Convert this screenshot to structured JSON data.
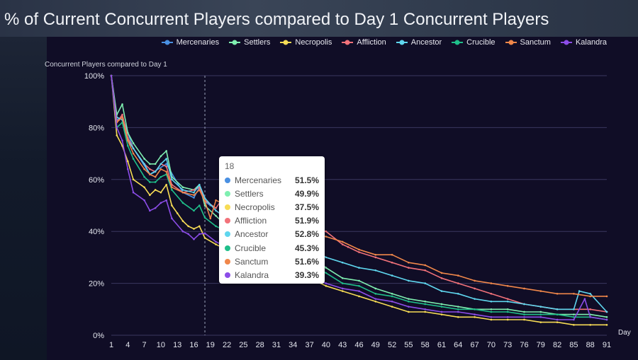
{
  "title": "% of Current Concurrent Players compared to Day 1 Concurrent Players",
  "colors": {
    "Mercenaries": "#4a90e2",
    "Settlers": "#7fefb0",
    "Necropolis": "#f7dc55",
    "Affliction": "#f2727a",
    "Ancestor": "#5fd6ee",
    "Crucible": "#1fbf8a",
    "Sanctum": "#f0874a",
    "Kalandra": "#8c4de8",
    "grid": "#3a3860",
    "axis_text": "#e4e6ee",
    "crosshair": "#9aa0b8"
  },
  "tooltip": {
    "day": "18",
    "rows": [
      {
        "name": "Mercenaries",
        "value": "51.5%"
      },
      {
        "name": "Settlers",
        "value": "49.9%"
      },
      {
        "name": "Necropolis",
        "value": "37.5%"
      },
      {
        "name": "Affliction",
        "value": "51.9%"
      },
      {
        "name": "Ancestor",
        "value": "52.8%"
      },
      {
        "name": "Crucible",
        "value": "45.3%"
      },
      {
        "name": "Sanctum",
        "value": "51.6%"
      },
      {
        "name": "Kalandra",
        "value": "39.3%"
      }
    ]
  },
  "chart_data": {
    "type": "line",
    "title": "% of Current Concurrent Players compared to Day 1 Concurrent Players",
    "ylabel": "Concurrent Players compared to Day 1",
    "xlabel": "Day",
    "xlim": [
      1,
      91
    ],
    "ylim": [
      0,
      100
    ],
    "x_ticks": [
      1,
      4,
      7,
      10,
      13,
      16,
      19,
      22,
      25,
      28,
      31,
      34,
      37,
      40,
      43,
      46,
      49,
      52,
      55,
      58,
      61,
      64,
      67,
      70,
      73,
      76,
      79,
      82,
      85,
      88,
      91
    ],
    "y_ticks": [
      0,
      20,
      40,
      60,
      80,
      100
    ],
    "y_tick_labels": [
      "0%",
      "20%",
      "40%",
      "60%",
      "80%",
      "100%"
    ],
    "legend_position": "top-right",
    "grid": true,
    "highlight_x": 18,
    "series": [
      {
        "name": "Mercenaries",
        "points": [
          [
            1,
            100
          ],
          [
            2,
            83
          ],
          [
            3,
            84
          ],
          [
            5,
            72
          ],
          [
            8,
            62
          ],
          [
            11,
            66
          ],
          [
            14,
            55
          ],
          [
            16,
            53
          ],
          [
            17,
            57
          ],
          [
            18,
            51.5
          ],
          [
            19,
            50
          ]
        ]
      },
      {
        "name": "Settlers",
        "points": [
          [
            1,
            100
          ],
          [
            2,
            85
          ],
          [
            3,
            89
          ],
          [
            4,
            78
          ],
          [
            5,
            74
          ],
          [
            7,
            68
          ],
          [
            8,
            66
          ],
          [
            9,
            66
          ],
          [
            10,
            69
          ],
          [
            11,
            71
          ],
          [
            12,
            61
          ],
          [
            14,
            57
          ],
          [
            16,
            56
          ],
          [
            17,
            58
          ],
          [
            18,
            49.9
          ],
          [
            20,
            46
          ],
          [
            22,
            42
          ],
          [
            25,
            39
          ],
          [
            28,
            37
          ],
          [
            31,
            35
          ],
          [
            34,
            34
          ],
          [
            37,
            31
          ],
          [
            40,
            26
          ],
          [
            43,
            22
          ],
          [
            46,
            21
          ],
          [
            49,
            18
          ],
          [
            52,
            16
          ],
          [
            55,
            14
          ],
          [
            58,
            13
          ],
          [
            61,
            12
          ],
          [
            64,
            11
          ],
          [
            67,
            10
          ],
          [
            70,
            10
          ],
          [
            73,
            10
          ],
          [
            76,
            9
          ],
          [
            79,
            9
          ],
          [
            82,
            8
          ],
          [
            85,
            8
          ],
          [
            88,
            8
          ],
          [
            91,
            7
          ]
        ]
      },
      {
        "name": "Necropolis",
        "points": [
          [
            1,
            100
          ],
          [
            2,
            77
          ],
          [
            3,
            73
          ],
          [
            4,
            67
          ],
          [
            5,
            60
          ],
          [
            7,
            57
          ],
          [
            8,
            54
          ],
          [
            9,
            56
          ],
          [
            10,
            55
          ],
          [
            11,
            58
          ],
          [
            12,
            50
          ],
          [
            13,
            47
          ],
          [
            14,
            44
          ],
          [
            15,
            42
          ],
          [
            16,
            41
          ],
          [
            17,
            42
          ],
          [
            18,
            37.5
          ],
          [
            20,
            35
          ],
          [
            22,
            33
          ],
          [
            25,
            30
          ],
          [
            28,
            29
          ],
          [
            31,
            27
          ],
          [
            34,
            25
          ],
          [
            37,
            22
          ],
          [
            40,
            19
          ],
          [
            43,
            17
          ],
          [
            46,
            15
          ],
          [
            49,
            13
          ],
          [
            52,
            11
          ],
          [
            55,
            9
          ],
          [
            58,
            9
          ],
          [
            61,
            8
          ],
          [
            64,
            7
          ],
          [
            67,
            7
          ],
          [
            70,
            6
          ],
          [
            73,
            6
          ],
          [
            76,
            6
          ],
          [
            79,
            5
          ],
          [
            82,
            5
          ],
          [
            85,
            4
          ],
          [
            88,
            4
          ],
          [
            91,
            4
          ]
        ]
      },
      {
        "name": "Affliction",
        "points": [
          [
            1,
            100
          ],
          [
            2,
            82
          ],
          [
            3,
            85
          ],
          [
            4,
            76
          ],
          [
            5,
            72
          ],
          [
            7,
            66
          ],
          [
            8,
            64
          ],
          [
            9,
            63
          ],
          [
            10,
            66
          ],
          [
            11,
            65
          ],
          [
            12,
            58
          ],
          [
            14,
            55
          ],
          [
            16,
            56
          ],
          [
            17,
            57
          ],
          [
            18,
            51.9
          ],
          [
            20,
            49
          ],
          [
            22,
            55
          ],
          [
            25,
            50
          ],
          [
            28,
            47
          ],
          [
            31,
            45
          ],
          [
            34,
            44
          ],
          [
            37,
            41
          ],
          [
            40,
            40
          ],
          [
            43,
            35
          ],
          [
            44,
            34
          ],
          [
            46,
            32
          ],
          [
            49,
            30
          ],
          [
            52,
            28
          ],
          [
            55,
            26
          ],
          [
            58,
            25
          ],
          [
            61,
            22
          ],
          [
            64,
            20
          ],
          [
            67,
            18
          ],
          [
            70,
            16
          ],
          [
            73,
            14
          ],
          [
            76,
            12
          ],
          [
            79,
            11
          ],
          [
            82,
            10
          ],
          [
            85,
            10
          ],
          [
            88,
            10
          ],
          [
            91,
            9
          ]
        ]
      },
      {
        "name": "Ancestor",
        "points": [
          [
            1,
            100
          ],
          [
            2,
            84
          ],
          [
            3,
            83
          ],
          [
            4,
            75
          ],
          [
            5,
            72
          ],
          [
            7,
            66
          ],
          [
            8,
            62
          ],
          [
            9,
            63
          ],
          [
            10,
            66
          ],
          [
            11,
            68
          ],
          [
            12,
            60
          ],
          [
            14,
            56
          ],
          [
            16,
            55
          ],
          [
            17,
            58
          ],
          [
            18,
            52.8
          ],
          [
            20,
            48
          ],
          [
            22,
            45
          ],
          [
            25,
            42
          ],
          [
            28,
            40
          ],
          [
            31,
            38
          ],
          [
            34,
            36
          ],
          [
            37,
            34
          ],
          [
            40,
            30
          ],
          [
            43,
            28
          ],
          [
            46,
            26
          ],
          [
            49,
            25
          ],
          [
            52,
            23
          ],
          [
            55,
            21
          ],
          [
            58,
            20
          ],
          [
            61,
            17
          ],
          [
            64,
            16
          ],
          [
            67,
            14
          ],
          [
            70,
            13
          ],
          [
            73,
            13
          ],
          [
            76,
            12
          ],
          [
            79,
            11
          ],
          [
            82,
            10
          ],
          [
            85,
            10
          ],
          [
            86,
            17
          ],
          [
            88,
            16
          ],
          [
            91,
            9
          ]
        ]
      },
      {
        "name": "Crucible",
        "points": [
          [
            1,
            100
          ],
          [
            2,
            80
          ],
          [
            3,
            82
          ],
          [
            4,
            73
          ],
          [
            5,
            68
          ],
          [
            7,
            61
          ],
          [
            8,
            59
          ],
          [
            9,
            59
          ],
          [
            10,
            61
          ],
          [
            11,
            62
          ],
          [
            12,
            56
          ],
          [
            14,
            51
          ],
          [
            16,
            48
          ],
          [
            17,
            50
          ],
          [
            18,
            45.3
          ],
          [
            20,
            42
          ],
          [
            22,
            40
          ],
          [
            25,
            37
          ],
          [
            28,
            35
          ],
          [
            31,
            33
          ],
          [
            34,
            30
          ],
          [
            37,
            28
          ],
          [
            40,
            24
          ],
          [
            43,
            20
          ],
          [
            46,
            19
          ],
          [
            49,
            16
          ],
          [
            52,
            15
          ],
          [
            55,
            13
          ],
          [
            58,
            12
          ],
          [
            61,
            11
          ],
          [
            64,
            10
          ],
          [
            67,
            10
          ],
          [
            70,
            9
          ],
          [
            73,
            9
          ],
          [
            76,
            8
          ],
          [
            79,
            8
          ],
          [
            82,
            8
          ],
          [
            85,
            7
          ],
          [
            88,
            7
          ],
          [
            91,
            6
          ]
        ]
      },
      {
        "name": "Sanctum",
        "points": [
          [
            1,
            100
          ],
          [
            2,
            82
          ],
          [
            3,
            84
          ],
          [
            4,
            75
          ],
          [
            5,
            70
          ],
          [
            7,
            64
          ],
          [
            8,
            62
          ],
          [
            9,
            61
          ],
          [
            10,
            64
          ],
          [
            11,
            63
          ],
          [
            12,
            57
          ],
          [
            14,
            55
          ],
          [
            16,
            54
          ],
          [
            17,
            56
          ],
          [
            18,
            51.6
          ],
          [
            19,
            45
          ],
          [
            20,
            52
          ],
          [
            22,
            50
          ],
          [
            25,
            48
          ],
          [
            28,
            46
          ],
          [
            31,
            43
          ],
          [
            34,
            42
          ],
          [
            37,
            39
          ],
          [
            40,
            38
          ],
          [
            43,
            36
          ],
          [
            46,
            33
          ],
          [
            49,
            31
          ],
          [
            52,
            31
          ],
          [
            55,
            28
          ],
          [
            58,
            27
          ],
          [
            61,
            24
          ],
          [
            64,
            23
          ],
          [
            67,
            21
          ],
          [
            70,
            20
          ],
          [
            73,
            19
          ],
          [
            76,
            18
          ],
          [
            79,
            17
          ],
          [
            82,
            16
          ],
          [
            85,
            16
          ],
          [
            88,
            15
          ],
          [
            91,
            15
          ]
        ]
      },
      {
        "name": "Kalandra",
        "points": [
          [
            1,
            100
          ],
          [
            2,
            80
          ],
          [
            3,
            75
          ],
          [
            4,
            64
          ],
          [
            5,
            55
          ],
          [
            7,
            52
          ],
          [
            8,
            48
          ],
          [
            9,
            49
          ],
          [
            10,
            51
          ],
          [
            11,
            52
          ],
          [
            12,
            45
          ],
          [
            14,
            40
          ],
          [
            15,
            39
          ],
          [
            16,
            37
          ],
          [
            17,
            39
          ],
          [
            18,
            39.3
          ],
          [
            20,
            36
          ],
          [
            22,
            34
          ],
          [
            25,
            31
          ],
          [
            28,
            29
          ],
          [
            31,
            27
          ],
          [
            34,
            25
          ],
          [
            37,
            23
          ],
          [
            40,
            20
          ],
          [
            43,
            18
          ],
          [
            46,
            17
          ],
          [
            49,
            14
          ],
          [
            52,
            13
          ],
          [
            55,
            11
          ],
          [
            58,
            10
          ],
          [
            61,
            9
          ],
          [
            64,
            9
          ],
          [
            67,
            8
          ],
          [
            70,
            7
          ],
          [
            73,
            7
          ],
          [
            76,
            7
          ],
          [
            79,
            7
          ],
          [
            82,
            6
          ],
          [
            85,
            6
          ],
          [
            87,
            14
          ],
          [
            88,
            7
          ],
          [
            91,
            6
          ]
        ]
      }
    ]
  }
}
